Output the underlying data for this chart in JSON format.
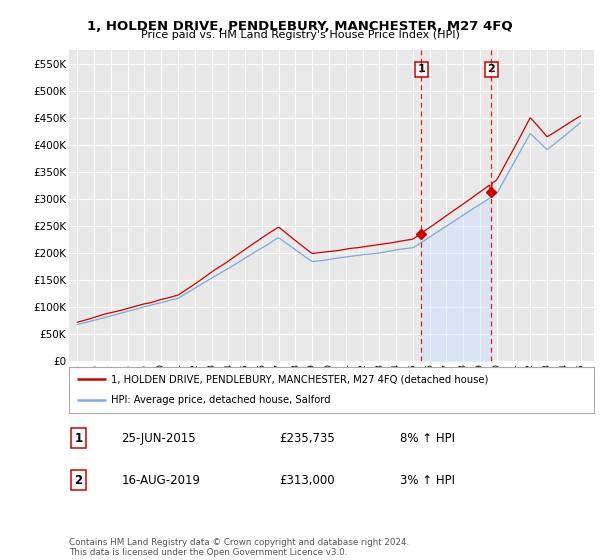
{
  "title": "1, HOLDEN DRIVE, PENDLEBURY, MANCHESTER, M27 4FQ",
  "subtitle": "Price paid vs. HM Land Registry's House Price Index (HPI)",
  "background_color": "#ffffff",
  "plot_bg_color": "#e8e8e8",
  "grid_color": "#ffffff",
  "legend_label_red": "1, HOLDEN DRIVE, PENDLEBURY, MANCHESTER, M27 4FQ (detached house)",
  "legend_label_blue": "HPI: Average price, detached house, Salford",
  "red_color": "#cc0000",
  "blue_color": "#7aaadd",
  "blue_fill_color": "#cce0ff",
  "point1_date": "25-JUN-2015",
  "point1_price": 235735,
  "point1_label": "1",
  "point1_hpi": "8% ↑ HPI",
  "point2_date": "16-AUG-2019",
  "point2_price": 313000,
  "point2_label": "2",
  "point2_hpi": "3% ↑ HPI",
  "note": "Contains HM Land Registry data © Crown copyright and database right 2024.\nThis data is licensed under the Open Government Licence v3.0.",
  "ylim": [
    0,
    575000
  ],
  "yticks": [
    0,
    50000,
    100000,
    150000,
    200000,
    250000,
    300000,
    350000,
    400000,
    450000,
    500000,
    550000
  ],
  "ytick_labels": [
    "£0",
    "£50K",
    "£100K",
    "£150K",
    "£200K",
    "£250K",
    "£300K",
    "£350K",
    "£400K",
    "£450K",
    "£500K",
    "£550K"
  ],
  "point1_x": 2015.5,
  "point2_x": 2019.67,
  "xlim_min": 1994.5,
  "xlim_max": 2025.8
}
